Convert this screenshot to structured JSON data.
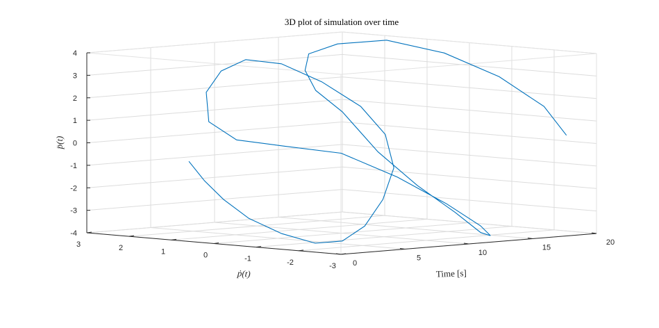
{
  "chart_data": {
    "type": "line3d",
    "title": "3D plot of simulation over time",
    "axes": {
      "time": {
        "label": "Time [s]",
        "range": [
          0,
          20
        ],
        "ticks": [
          0,
          5,
          10,
          15,
          20
        ]
      },
      "pdot": {
        "label": "ṗ(t)",
        "range": [
          -3,
          3
        ],
        "ticks": [
          3,
          2,
          1,
          0,
          -1,
          -2,
          -3
        ]
      },
      "pddot": {
        "label": "p̈(t)",
        "range": [
          -4,
          4
        ],
        "ticks": [
          4,
          3,
          2,
          1,
          0,
          -1,
          -2,
          -3,
          -4
        ]
      }
    },
    "grid": true,
    "series": [
      {
        "color": "#0072BD",
        "points": [
          [
            0.0,
            0.59,
            -0.44
          ],
          [
            0.53,
            0.38,
            -1.3
          ],
          [
            1.05,
            0.09,
            -2.1
          ],
          [
            1.58,
            -0.35,
            -2.9
          ],
          [
            2.1,
            -0.97,
            -3.5
          ],
          [
            2.63,
            -1.6,
            -3.85
          ],
          [
            3.16,
            -2.08,
            -3.7
          ],
          [
            3.68,
            -2.45,
            -3.0
          ],
          [
            4.21,
            -2.72,
            -1.8
          ],
          [
            4.74,
            -2.82,
            -0.4
          ],
          [
            5.26,
            -2.46,
            1.0
          ],
          [
            5.79,
            -1.72,
            2.1
          ],
          [
            6.32,
            -0.64,
            3.0
          ],
          [
            6.84,
            0.47,
            3.6
          ],
          [
            7.37,
            1.47,
            3.6
          ],
          [
            7.89,
            2.21,
            2.95
          ],
          [
            8.42,
            2.72,
            1.9
          ],
          [
            8.95,
            2.82,
            0.55
          ],
          [
            9.47,
            2.32,
            -0.2
          ],
          [
            10.0,
            1.34,
            -0.35
          ],
          [
            10.53,
            0.17,
            -0.5
          ],
          [
            11.05,
            -1.0,
            -1.4
          ],
          [
            11.58,
            -2.0,
            -2.45
          ],
          [
            12.11,
            -2.64,
            -3.35
          ],
          [
            12.63,
            -2.72,
            -3.8
          ],
          [
            13.16,
            -2.33,
            -3.75
          ],
          [
            13.68,
            -1.57,
            -3.0
          ],
          [
            14.21,
            -0.52,
            -2.0
          ],
          [
            14.74,
            0.57,
            -0.7
          ],
          [
            15.26,
            1.57,
            0.9
          ],
          [
            15.79,
            2.36,
            1.7
          ],
          [
            16.32,
            2.77,
            2.5
          ],
          [
            16.84,
            2.84,
            3.2
          ],
          [
            17.37,
            2.32,
            3.7
          ],
          [
            17.89,
            1.32,
            4.0
          ],
          [
            18.42,
            0.12,
            3.6
          ],
          [
            18.95,
            -1.02,
            2.7
          ],
          [
            19.47,
            -1.92,
            1.5
          ],
          [
            20.0,
            -2.29,
            0.25
          ]
        ]
      }
    ]
  }
}
